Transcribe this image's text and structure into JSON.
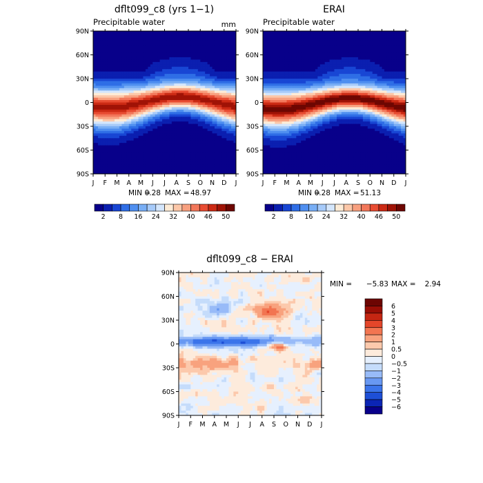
{
  "colors": {
    "seq_palette": [
      "#08008a",
      "#0b1fb0",
      "#1846d4",
      "#2f6ee6",
      "#4f8ff0",
      "#78aef5",
      "#a6caf9",
      "#d4e6fc",
      "#fdebd6",
      "#fcc7a8",
      "#f8a07f",
      "#f2775a",
      "#e84c32",
      "#cc2a14",
      "#a01306",
      "#6e0702"
    ],
    "div_palette": [
      "#08008a",
      "#0b25b5",
      "#1e4fd6",
      "#3b74ea",
      "#6898f2",
      "#98bbf8",
      "#c5dcfb",
      "#e6f0fe",
      "#fdebdc",
      "#fcc9ac",
      "#f8a27e",
      "#f27551",
      "#e4462a",
      "#c52612",
      "#990e05",
      "#6c0502"
    ]
  },
  "chart_data": [
    {
      "type": "heatmap",
      "title": "dflt099_c8 (yrs 1−1)",
      "subtitle": "Precipitable water",
      "units": "mm",
      "x_ticks": [
        "J",
        "F",
        "M",
        "A",
        "M",
        "J",
        "J",
        "A",
        "S",
        "O",
        "N",
        "D",
        "J"
      ],
      "y_ticks": [
        "90N",
        "60N",
        "30N",
        "0",
        "30S",
        "60S",
        "90S"
      ],
      "ylim": [
        -90,
        90
      ],
      "min_label": "MIN =",
      "min_value": "0.28",
      "max_label": "MAX =",
      "max_value": "48.97",
      "colorbar_labels": [
        "2",
        "8",
        "16",
        "24",
        "32",
        "40",
        "46",
        "50"
      ],
      "peak_value": 48.97,
      "peak_lat_shift": 0
    },
    {
      "type": "heatmap",
      "title": "ERAI",
      "subtitle": "Precipitable water",
      "x_ticks": [
        "J",
        "F",
        "M",
        "A",
        "M",
        "J",
        "J",
        "A",
        "S",
        "O",
        "N",
        "D",
        "J"
      ],
      "y_ticks": [
        "90N",
        "60N",
        "30N",
        "0",
        "30S",
        "60S",
        "90S"
      ],
      "ylim": [
        -90,
        90
      ],
      "min_label": "MIN =",
      "min_value": "0.28",
      "max_label": "MAX =",
      "max_value": "51.13",
      "colorbar_labels": [
        "2",
        "8",
        "16",
        "24",
        "32",
        "40",
        "46",
        "50"
      ],
      "peak_value": 51.13,
      "peak_lat_shift": -2
    },
    {
      "type": "heatmap",
      "title": "dflt099_c8 − ERAI",
      "x_ticks": [
        "J",
        "F",
        "M",
        "A",
        "M",
        "J",
        "J",
        "A",
        "S",
        "O",
        "N",
        "D",
        "J"
      ],
      "y_ticks": [
        "90N",
        "60N",
        "30N",
        "0",
        "30S",
        "60S",
        "90S"
      ],
      "ylim": [
        -90,
        90
      ],
      "min_label": "MIN =",
      "min_value": "−5.83",
      "max_label": "MAX =",
      "max_value": "2.94",
      "colorbar_labels": [
        "6",
        "5",
        "4",
        "3",
        "2",
        "1",
        "0.5",
        "0",
        "−0.5",
        "−1",
        "−2",
        "−3",
        "−4",
        "−5",
        "−6"
      ]
    }
  ]
}
